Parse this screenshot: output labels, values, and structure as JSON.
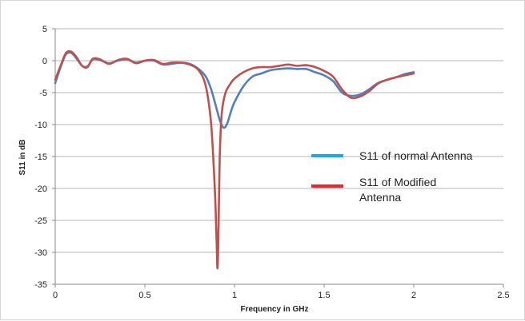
{
  "chart_data": {
    "type": "line",
    "title": "",
    "xlabel": "Frequency in GHz",
    "ylabel": "S11 in dB",
    "xlim": [
      0,
      2.5
    ],
    "ylim": [
      -35,
      5
    ],
    "x_ticks": [
      0,
      0.5,
      1,
      1.5,
      2,
      2.5
    ],
    "x_tick_labels": [
      "0",
      "0.5",
      "1",
      "1.5",
      "2",
      "2.5"
    ],
    "y_ticks": [
      5,
      0,
      -5,
      -10,
      -15,
      -20,
      -25,
      -30,
      -35
    ],
    "y_tick_labels": [
      "5",
      "0",
      "-5",
      "-10",
      "-15",
      "-20",
      "-25",
      "-30",
      "-35"
    ],
    "grid": "horizontal",
    "legend_position": "center-right",
    "series": [
      {
        "name": "S11 of normal Antenna",
        "color": "#4f81bd",
        "legend_color": "#1ea7e1",
        "x": [
          0,
          0.03,
          0.06,
          0.09,
          0.12,
          0.15,
          0.18,
          0.21,
          0.25,
          0.3,
          0.35,
          0.4,
          0.45,
          0.5,
          0.55,
          0.6,
          0.65,
          0.7,
          0.75,
          0.8,
          0.84,
          0.87,
          0.9,
          0.92,
          0.94,
          0.96,
          0.98,
          1.0,
          1.05,
          1.1,
          1.15,
          1.2,
          1.25,
          1.3,
          1.35,
          1.4,
          1.45,
          1.5,
          1.55,
          1.6,
          1.65,
          1.7,
          1.75,
          1.8,
          1.85,
          1.9,
          1.95,
          2.0
        ],
        "y": [
          -3.5,
          -1.0,
          1.0,
          1.2,
          0.3,
          -0.8,
          -0.9,
          0.2,
          0.1,
          -0.4,
          0.0,
          0.2,
          -0.3,
          0.0,
          0.0,
          -0.6,
          -0.5,
          -0.3,
          -0.5,
          -1.3,
          -2.5,
          -4.5,
          -7.5,
          -9.5,
          -10.5,
          -9.8,
          -8.0,
          -6.5,
          -4.0,
          -2.5,
          -2.0,
          -1.5,
          -1.3,
          -1.2,
          -1.3,
          -1.3,
          -1.8,
          -2.3,
          -3.2,
          -5.0,
          -5.5,
          -5.3,
          -4.5,
          -3.5,
          -3.0,
          -2.6,
          -2.1,
          -1.8
        ]
      },
      {
        "name": "S11 of Modified Antenna",
        "color": "#c0504d",
        "legend_color": "#e8262b",
        "x": [
          0,
          0.03,
          0.06,
          0.09,
          0.12,
          0.15,
          0.18,
          0.21,
          0.25,
          0.3,
          0.35,
          0.4,
          0.45,
          0.5,
          0.55,
          0.6,
          0.65,
          0.7,
          0.75,
          0.8,
          0.84,
          0.87,
          0.89,
          0.9,
          0.905,
          0.91,
          0.915,
          0.92,
          0.93,
          0.95,
          0.98,
          1.0,
          1.05,
          1.1,
          1.15,
          1.2,
          1.25,
          1.3,
          1.35,
          1.4,
          1.45,
          1.5,
          1.55,
          1.6,
          1.65,
          1.7,
          1.75,
          1.8,
          1.85,
          1.9,
          1.95,
          2.0
        ],
        "y": [
          -3.0,
          -0.8,
          1.2,
          1.4,
          0.5,
          -0.8,
          -1.0,
          0.3,
          0.2,
          -0.5,
          0.1,
          0.3,
          -0.4,
          0.0,
          0.1,
          -0.5,
          -0.3,
          -0.3,
          -0.6,
          -1.5,
          -4.0,
          -10.0,
          -20.0,
          -28.0,
          -32.5,
          -28.0,
          -19.0,
          -13.0,
          -8.0,
          -5.0,
          -3.5,
          -2.8,
          -1.8,
          -1.2,
          -1.0,
          -1.0,
          -0.8,
          -0.6,
          -0.8,
          -0.7,
          -1.0,
          -1.6,
          -2.5,
          -4.5,
          -5.8,
          -5.6,
          -4.8,
          -3.6,
          -3.0,
          -2.6,
          -2.3,
          -2.0
        ]
      }
    ]
  }
}
